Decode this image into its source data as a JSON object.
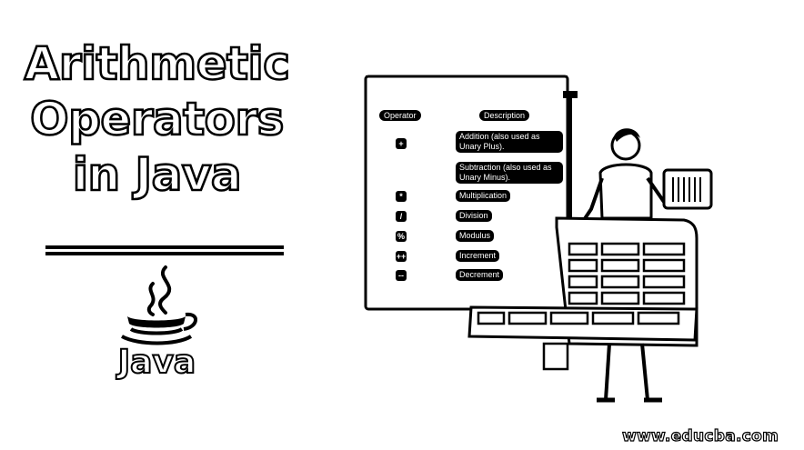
{
  "title": {
    "line1": "Arithmetic",
    "line2": "Operators",
    "line3": "in Java"
  },
  "logo": {
    "word": "Java"
  },
  "table": {
    "header_operator": "Operator",
    "header_description": "Description",
    "rows": [
      {
        "symbol": "+",
        "description": "Addition (also used as Unary Plus)."
      },
      {
        "symbol": "",
        "description": "Subtraction (also used as Unary Minus)."
      },
      {
        "symbol": "*",
        "description": "Multiplication"
      },
      {
        "symbol": "/",
        "description": "Division"
      },
      {
        "symbol": "%",
        "description": "Modulus"
      },
      {
        "symbol": "++",
        "description": "Increment"
      },
      {
        "symbol": "--",
        "description": "Decrement"
      }
    ]
  },
  "footer": {
    "url": "www.educba.com"
  },
  "colors": {
    "ink": "#000000",
    "paper": "#ffffff"
  }
}
